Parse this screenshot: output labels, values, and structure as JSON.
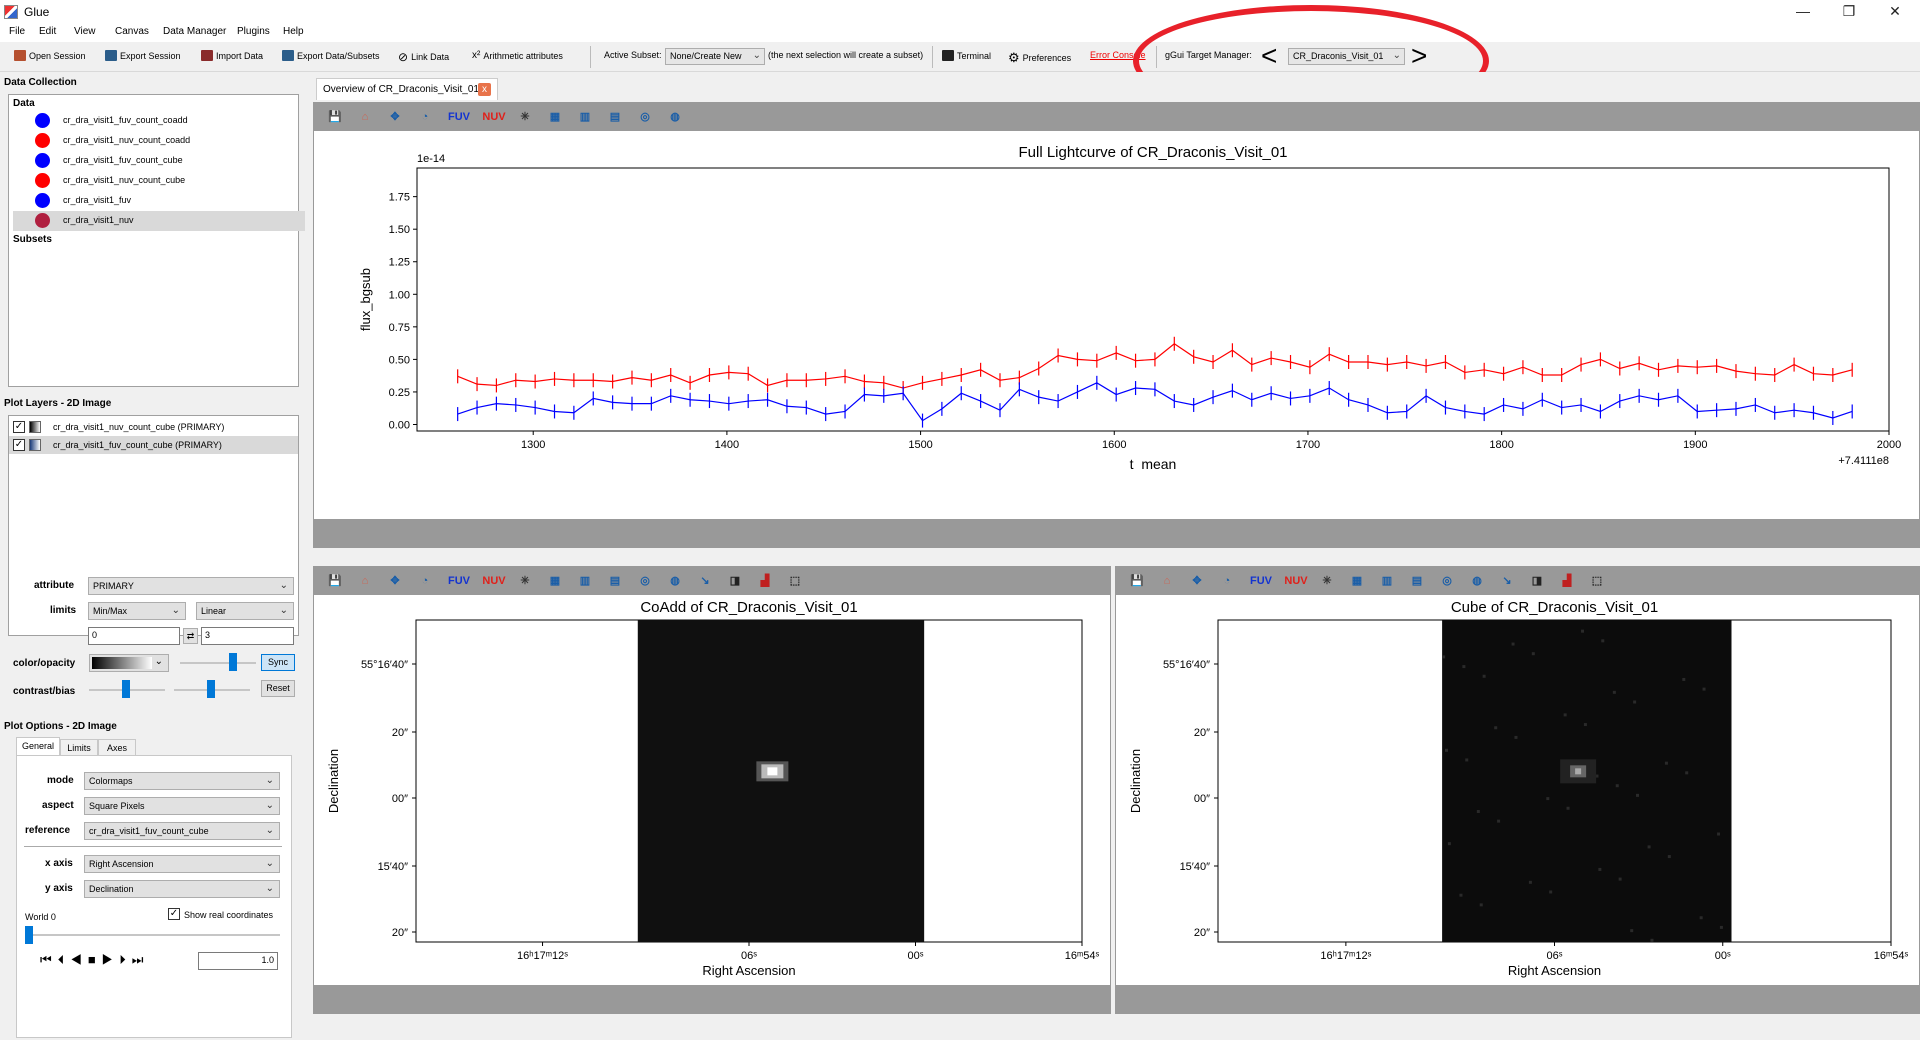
{
  "window": {
    "title": "Glue",
    "min": "—",
    "max": "❐",
    "close": "✕"
  },
  "menu": [
    "File",
    "Edit",
    "View",
    "Canvas",
    "Data Manager",
    "Plugins",
    "Help"
  ],
  "toolbar": {
    "open_session": "Open Session",
    "export_session": "Export Session",
    "import_data": "Import Data",
    "export_data": "Export Data/Subsets",
    "link_data": "Link Data",
    "arith_icon": "x²",
    "arith": "Arithmetic attributes",
    "active_subset": "Active Subset:",
    "subset_mode": "None/Create New",
    "subset_hint": "(the next selection will create a subset)",
    "terminal": "Terminal",
    "preferences": "Preferences",
    "error_console": "Error Console",
    "gui_target_label": "gGui Target Manager:",
    "target_prev": "<",
    "target_value": "CR_Draconis_Visit_01",
    "target_next": ">"
  },
  "left": {
    "data_collection": "Data Collection",
    "data_hdr": "Data",
    "subsets_hdr": "Subsets",
    "items": [
      {
        "name": "cr_dra_visit1_fuv_count_coadd",
        "color": "#0000ff"
      },
      {
        "name": "cr_dra_visit1_nuv_count_coadd",
        "color": "#ff0000"
      },
      {
        "name": "cr_dra_visit1_fuv_count_cube",
        "color": "#0000ff"
      },
      {
        "name": "cr_dra_visit1_nuv_count_cube",
        "color": "#ff0000"
      },
      {
        "name": "cr_dra_visit1_fuv",
        "color": "#0000ff"
      },
      {
        "name": "cr_dra_visit1_nuv",
        "color": "#b02040"
      }
    ],
    "plot_layers": "Plot Layers - 2D Image",
    "layers": [
      "cr_dra_visit1_nuv_count_cube (PRIMARY)",
      "cr_dra_visit1_fuv_count_cube (PRIMARY)"
    ],
    "attribute_lbl": "attribute",
    "attribute_val": "PRIMARY",
    "limits_lbl": "limits",
    "limits_mode": "Min/Max",
    "limits_scale": "Linear",
    "lim_min": "0",
    "lim_max": "3",
    "lim_icon": "⇄",
    "color_lbl": "color/opacity",
    "sync": "Sync",
    "contrast_lbl": "contrast/bias",
    "reset": "Reset",
    "plot_options": "Plot Options - 2D Image",
    "tabs": [
      "General",
      "Limits",
      "Axes"
    ],
    "mode_lbl": "mode",
    "mode_val": "Colormaps",
    "aspect_lbl": "aspect",
    "aspect_val": "Square Pixels",
    "reference_lbl": "reference",
    "reference_val": "cr_dra_visit1_fuv_count_cube",
    "xaxis_lbl": "x axis",
    "xaxis_val": "Right Ascension",
    "yaxis_lbl": "y axis",
    "yaxis_val": "Declination",
    "world_lbl": "World 0",
    "real_coords": "Show real coordinates",
    "speed": "1.0"
  },
  "main": {
    "tab": "Overview of CR_Draconis_Visit_01",
    "tab_close": "x"
  },
  "icons": {
    "fuv": "FUV",
    "nuv": "NUV"
  },
  "chart_data": [
    {
      "type": "line",
      "title": "Full Lightcurve of CR_Draconis_Visit_01",
      "xlabel": "t_mean",
      "ylabel": "flux_bgsub",
      "offset_label": "+7.4111e8",
      "scale_label": "1e-14",
      "xlim": [
        1240,
        2000
      ],
      "ylim": [
        -0.05,
        1.97
      ],
      "xticks": [
        "1300",
        "1400",
        "1500",
        "1600",
        "1700",
        "1800",
        "1900",
        "2000"
      ],
      "yticks": [
        "0.00",
        "0.25",
        "0.50",
        "0.75",
        "1.00",
        "1.25",
        "1.50",
        "1.75"
      ],
      "series": [
        {
          "color": "#ff0000",
          "x": [
            1261,
            1271,
            1281,
            1291,
            1301,
            1311,
            1321,
            1331,
            1341,
            1351,
            1361,
            1371,
            1381,
            1391,
            1401,
            1411,
            1421,
            1431,
            1441,
            1451,
            1461,
            1471,
            1481,
            1491,
            1501,
            1511,
            1521,
            1531,
            1541,
            1551,
            1561,
            1571,
            1581,
            1591,
            1601,
            1611,
            1621,
            1631,
            1641,
            1651,
            1661,
            1671,
            1681,
            1691,
            1701,
            1711,
            1721,
            1731,
            1741,
            1751,
            1761,
            1771,
            1781,
            1791,
            1801,
            1811,
            1821,
            1831,
            1841,
            1851,
            1861,
            1871,
            1881,
            1891,
            1901,
            1911,
            1921,
            1931,
            1941,
            1951,
            1961,
            1971,
            1981
          ],
          "y": [
            0.37,
            0.31,
            0.3,
            0.34,
            0.33,
            0.35,
            0.34,
            0.34,
            0.33,
            0.36,
            0.34,
            0.38,
            0.32,
            0.38,
            0.4,
            0.39,
            0.3,
            0.34,
            0.34,
            0.35,
            0.37,
            0.33,
            0.32,
            0.28,
            0.32,
            0.35,
            0.38,
            0.42,
            0.34,
            0.36,
            0.43,
            0.53,
            0.5,
            0.49,
            0.55,
            0.49,
            0.5,
            0.62,
            0.52,
            0.48,
            0.57,
            0.46,
            0.51,
            0.48,
            0.44,
            0.54,
            0.48,
            0.48,
            0.46,
            0.48,
            0.45,
            0.48,
            0.4,
            0.42,
            0.39,
            0.44,
            0.38,
            0.38,
            0.46,
            0.5,
            0.43,
            0.47,
            0.42,
            0.45,
            0.44,
            0.45,
            0.41,
            0.39,
            0.38,
            0.46,
            0.39,
            0.38,
            0.42
          ]
        },
        {
          "color": "#0000ff",
          "x": [
            1261,
            1271,
            1281,
            1291,
            1301,
            1311,
            1321,
            1331,
            1341,
            1351,
            1361,
            1371,
            1381,
            1391,
            1401,
            1411,
            1421,
            1431,
            1441,
            1451,
            1461,
            1471,
            1481,
            1491,
            1501,
            1511,
            1521,
            1531,
            1541,
            1551,
            1561,
            1571,
            1581,
            1591,
            1601,
            1611,
            1621,
            1631,
            1641,
            1651,
            1661,
            1671,
            1681,
            1691,
            1701,
            1711,
            1721,
            1731,
            1741,
            1751,
            1761,
            1771,
            1781,
            1791,
            1801,
            1811,
            1821,
            1831,
            1841,
            1851,
            1861,
            1871,
            1881,
            1891,
            1901,
            1911,
            1921,
            1931,
            1941,
            1951,
            1961,
            1971,
            1981
          ],
          "y": [
            0.08,
            0.13,
            0.16,
            0.15,
            0.13,
            0.1,
            0.09,
            0.2,
            0.17,
            0.16,
            0.16,
            0.22,
            0.19,
            0.18,
            0.16,
            0.18,
            0.19,
            0.14,
            0.13,
            0.08,
            0.1,
            0.23,
            0.22,
            0.24,
            0.03,
            0.12,
            0.24,
            0.18,
            0.11,
            0.27,
            0.21,
            0.18,
            0.25,
            0.32,
            0.23,
            0.28,
            0.27,
            0.18,
            0.15,
            0.21,
            0.26,
            0.19,
            0.24,
            0.2,
            0.22,
            0.28,
            0.19,
            0.15,
            0.09,
            0.1,
            0.22,
            0.13,
            0.1,
            0.08,
            0.15,
            0.12,
            0.19,
            0.13,
            0.15,
            0.1,
            0.18,
            0.22,
            0.19,
            0.22,
            0.1,
            0.11,
            0.12,
            0.15,
            0.09,
            0.11,
            0.09,
            0.05,
            0.1
          ]
        }
      ]
    },
    {
      "type": "heatmap",
      "title": "CoAdd of CR_Draconis_Visit_01",
      "xlabel": "Right Ascension",
      "ylabel": "Declination",
      "xticks": [
        "16ʰ17ᵐ12ˢ",
        "06ˢ",
        "00ˢ",
        "16ᵐ54ˢ"
      ],
      "yticks": [
        "55°16′40″",
        "20″",
        "00″",
        "15′40″",
        "20″"
      ]
    },
    {
      "type": "heatmap",
      "title": "Cube of CR_Draconis_Visit_01",
      "xlabel": "Right Ascension",
      "ylabel": "Declination",
      "xticks": [
        "16ʰ17ᵐ12ˢ",
        "06ˢ",
        "00ˢ",
        "16ᵐ54ˢ"
      ],
      "yticks": [
        "55°16′40″",
        "20″",
        "00″",
        "15′40″",
        "20″"
      ]
    }
  ]
}
